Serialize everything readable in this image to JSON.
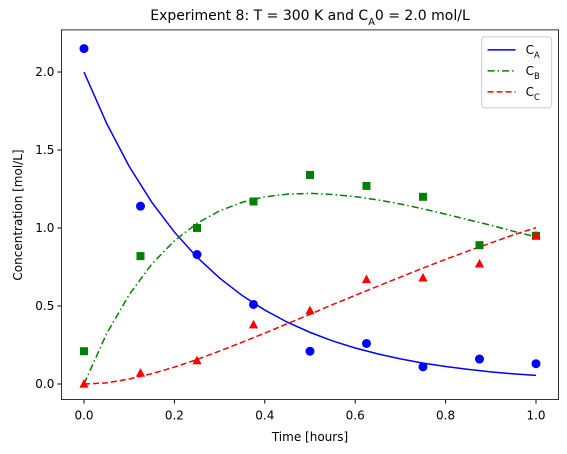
{
  "chart_data": {
    "type": "line",
    "title": "Experiment 8: T = 300 K and C_A0 = 2.0 mol/L",
    "x_label": "Time [hours]",
    "y_label": "Concentration [mol/L]",
    "x": [
      0,
      0.05,
      0.1,
      0.15,
      0.2,
      0.25,
      0.3,
      0.35,
      0.4,
      0.45,
      0.5,
      0.55,
      0.6,
      0.65,
      0.7,
      0.75,
      0.8,
      0.85,
      0.9,
      0.95,
      1.0
    ],
    "series": [
      {
        "name": "C_A",
        "color": "#0000ff",
        "linestyle": "solid",
        "values": [
          2.0,
          1.671,
          1.395,
          1.165,
          0.974,
          0.813,
          0.679,
          0.567,
          0.474,
          0.396,
          0.331,
          0.276,
          0.231,
          0.193,
          0.161,
          0.134,
          0.112,
          0.094,
          0.078,
          0.065,
          0.055
        ]
      },
      {
        "name": "C_B",
        "color": "#008000",
        "linestyle": "dashdot",
        "values": [
          0,
          0.322,
          0.573,
          0.769,
          0.918,
          1.03,
          1.11,
          1.165,
          1.2,
          1.217,
          1.222,
          1.215,
          1.201,
          1.18,
          1.154,
          1.123,
          1.089,
          1.053,
          1.018,
          0.979,
          0.943
        ]
      },
      {
        "name": "C_C",
        "color": "#ff0000",
        "linestyle": "dashed",
        "values": [
          0,
          0.007,
          0.032,
          0.066,
          0.108,
          0.157,
          0.211,
          0.268,
          0.326,
          0.387,
          0.447,
          0.509,
          0.568,
          0.627,
          0.685,
          0.743,
          0.799,
          0.853,
          0.904,
          0.956,
          1.002
        ]
      }
    ],
    "marker_x": [
      0,
      0.125,
      0.25,
      0.375,
      0.5,
      0.625,
      0.75,
      0.875,
      1.0
    ],
    "markers": [
      {
        "color": "#0000ff",
        "marker": "circle",
        "values": [
          2.15,
          1.14,
          0.83,
          0.51,
          0.21,
          0.26,
          0.11,
          0.16,
          0.13
        ]
      },
      {
        "color": "#008000",
        "marker": "square",
        "values": [
          0.21,
          0.82,
          1.0,
          1.17,
          1.34,
          1.27,
          1.2,
          0.89,
          0.95
        ]
      },
      {
        "color": "#ff0000",
        "marker": "triangle",
        "values": [
          0.0,
          0.07,
          0.15,
          0.38,
          0.47,
          0.67,
          0.68,
          0.77,
          0.95
        ]
      }
    ],
    "xlim": [
      -0.05,
      1.05
    ],
    "ylim": [
      -0.1,
      2.27
    ],
    "xticks": [
      {
        "value": 0,
        "label": "0.0"
      },
      {
        "value": 0.2,
        "label": "0.2"
      },
      {
        "value": 0.4,
        "label": "0.4"
      },
      {
        "value": 0.6,
        "label": "0.6"
      },
      {
        "value": 0.8,
        "label": "0.8"
      },
      {
        "value": 1.0,
        "label": "1.0"
      }
    ],
    "yticks": [
      {
        "value": 0,
        "label": "0.0"
      },
      {
        "value": 0.5,
        "label": "0.5"
      },
      {
        "value": 1.0,
        "label": "1.0"
      },
      {
        "value": 1.5,
        "label": "1.5"
      },
      {
        "value": 2.0,
        "label": "2.0"
      }
    ],
    "grid": false,
    "legend": "upper right"
  }
}
